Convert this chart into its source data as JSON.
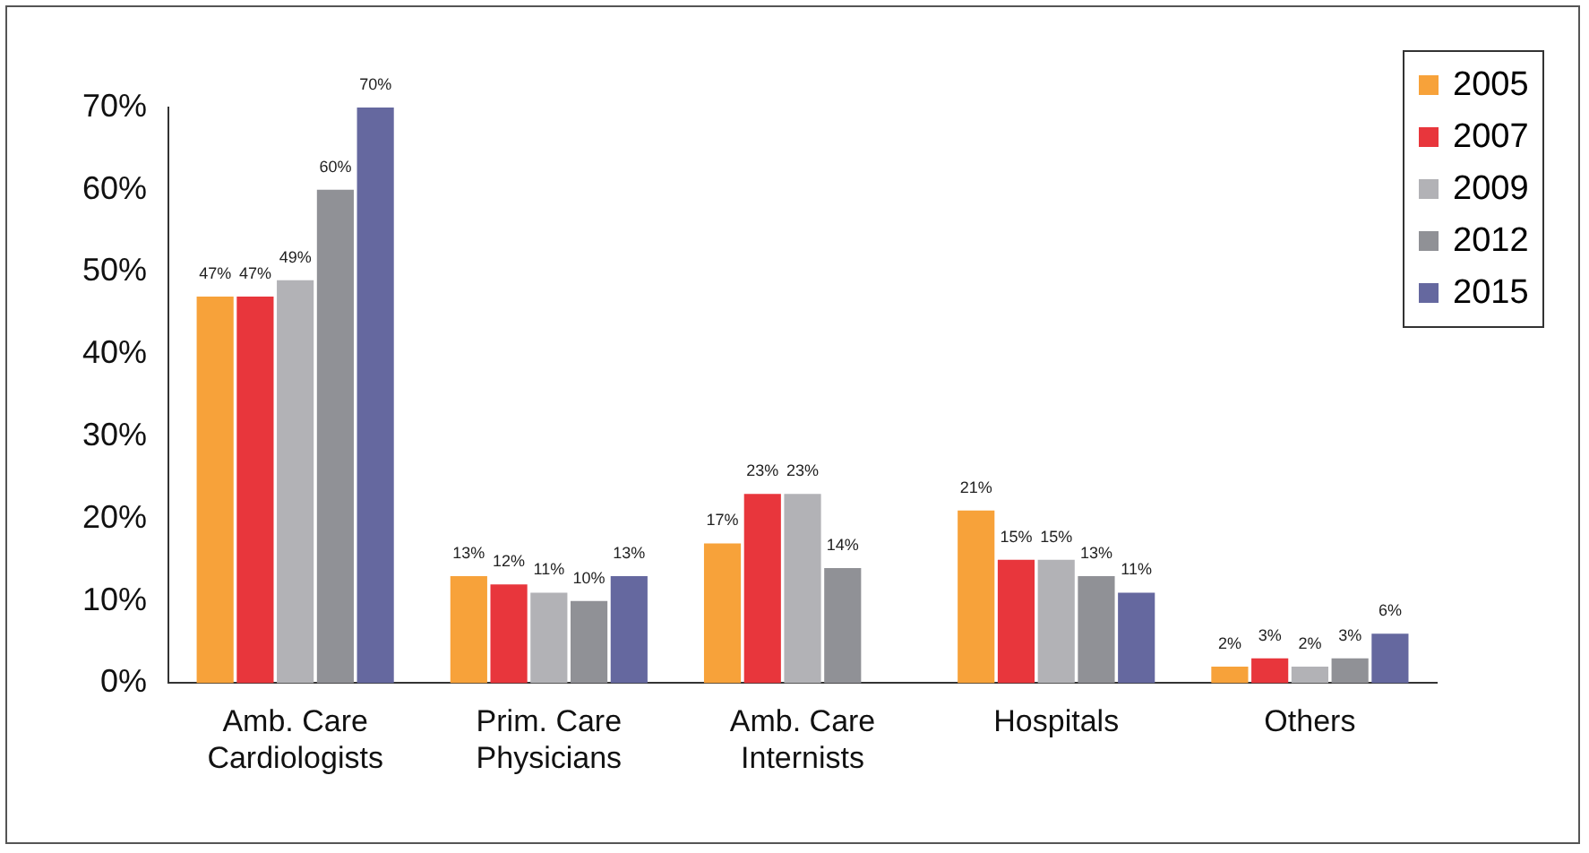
{
  "chart_data": {
    "type": "bar",
    "categories": [
      "Amb. Care Cardiologists",
      "Prim. Care Physicians",
      "Amb. Care Internists",
      "Hospitals",
      "Others"
    ],
    "series": [
      {
        "name": "2005",
        "color": "#f7a23a",
        "values": [
          47,
          13,
          17,
          21,
          2
        ],
        "value_labels": [
          "47%",
          "13%",
          "17%",
          "21%",
          "2%"
        ]
      },
      {
        "name": "2007",
        "color": "#e8363c",
        "values": [
          47,
          12,
          23,
          15,
          3
        ],
        "value_labels": [
          "47%",
          "12%",
          "23%",
          "15%",
          "3%"
        ]
      },
      {
        "name": "2009",
        "color": "#b2b2b6",
        "values": [
          49,
          11,
          23,
          15,
          2
        ],
        "value_labels": [
          "49%",
          "11%",
          "23%",
          "15%",
          "2%"
        ]
      },
      {
        "name": "2012",
        "color": "#909196",
        "values": [
          60,
          10,
          14,
          13,
          3
        ],
        "value_labels": [
          "60%",
          "10%",
          "14%",
          "13%",
          "3%"
        ]
      },
      {
        "name": "2015",
        "color": "#65689f",
        "values": [
          70,
          13,
          null,
          11,
          6
        ],
        "value_labels": [
          "70%",
          "13%",
          null,
          "11%",
          "6%"
        ]
      }
    ],
    "ylim": [
      0,
      70
    ],
    "yticks": [
      {
        "value": 0,
        "label": "0%"
      },
      {
        "value": 10,
        "label": "10%"
      },
      {
        "value": 20,
        "label": "20%"
      },
      {
        "value": 30,
        "label": "30%"
      },
      {
        "value": 40,
        "label": "40%"
      },
      {
        "value": 50,
        "label": "50%"
      },
      {
        "value": 60,
        "label": "60%"
      },
      {
        "value": 70,
        "label": "70%"
      }
    ],
    "grid": false,
    "legend": "top right"
  }
}
